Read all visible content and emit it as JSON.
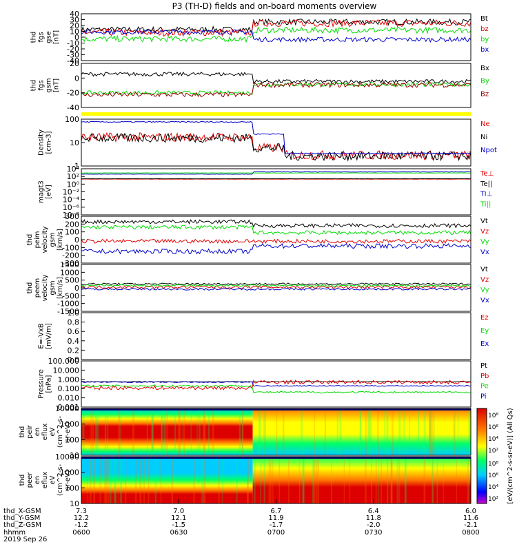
{
  "title": "P3 (TH-D) fields and on-board moments overview",
  "colors": {
    "black": "#000000",
    "red": "#e00000",
    "green": "#00dd00",
    "blue": "#0000cc",
    "darkred": "#990000",
    "yellow": "#ffff00"
  },
  "chart_data": [
    {
      "type": "line",
      "ylabel": [
        "thd",
        "fgs",
        "gse",
        "[nT]"
      ],
      "ylim": [
        -40,
        40
      ],
      "yticks": [
        "40",
        "30",
        "20",
        "10",
        "0",
        "-10",
        "-20",
        "-30",
        "-40"
      ],
      "series": [
        {
          "name": "Bt",
          "color": "black",
          "segments": [
            [
              0,
              0.44,
              13
            ],
            [
              0.44,
              1,
              26
            ]
          ],
          "noise": 5
        },
        {
          "name": "bz",
          "color": "red",
          "segments": [
            [
              0,
              0.44,
              8
            ],
            [
              0.44,
              1,
              24
            ]
          ],
          "noise": 6
        },
        {
          "name": "by",
          "color": "green",
          "segments": [
            [
              0,
              0.44,
              -3
            ],
            [
              0.44,
              1,
              12
            ]
          ],
          "noise": 5
        },
        {
          "name": "bx",
          "color": "blue",
          "segments": [
            [
              0,
              0.44,
              9
            ],
            [
              0.44,
              1,
              -4
            ]
          ],
          "noise": 4
        }
      ]
    },
    {
      "type": "line",
      "ylabel": [
        "thd",
        "fgs",
        "gsm",
        "[nT]"
      ],
      "ylim": [
        -50,
        40
      ],
      "yticks": [
        "20",
        "0",
        "-20",
        "-40"
      ],
      "series": [
        {
          "name": "Bx",
          "color": "black",
          "segments": [
            [
              0,
              0.44,
              18
            ],
            [
              0.44,
              1,
              3
            ]
          ],
          "noise": 4
        },
        {
          "name": "By",
          "color": "green",
          "segments": [
            [
              0,
              0.44,
              -20
            ],
            [
              0.44,
              1,
              -3
            ]
          ],
          "noise": 4
        },
        {
          "name": "Bz",
          "color": "darkred",
          "segments": [
            [
              0,
              0.44,
              -24
            ],
            [
              0.44,
              1,
              -4
            ]
          ],
          "noise": 5
        }
      ]
    },
    {
      "type": "line",
      "log": true,
      "ylabel": [
        "Density",
        "[cm-3]"
      ],
      "ylim": [
        0.5,
        200
      ],
      "yticks": [
        "100",
        "10",
        "1"
      ],
      "series": [
        {
          "name": "Ne",
          "color": "red",
          "segments": [
            [
              0,
              0.44,
              20
            ],
            [
              0.44,
              0.52,
              5
            ],
            [
              0.52,
              1,
              2
            ]
          ],
          "noise": 0.25
        },
        {
          "name": "Ni",
          "color": "black",
          "segments": [
            [
              0,
              0.44,
              18
            ],
            [
              0.44,
              0.52,
              5
            ],
            [
              0.52,
              1,
              1.8
            ]
          ],
          "noise": 0.25
        },
        {
          "name": "Npot",
          "color": "blue",
          "segments": [
            [
              0,
              0.44,
              140
            ],
            [
              0.44,
              0.52,
              30
            ],
            [
              0.52,
              1,
              2.5
            ]
          ],
          "noise": 0.03
        }
      ]
    },
    {
      "type": "line",
      "log": true,
      "ylabel": [
        "magt3",
        "[eV]"
      ],
      "ylim": [
        1e-08,
        10000.0
      ],
      "yticks": [
        "10⁴",
        "10²",
        "10⁰",
        "10⁻²",
        "10⁻⁴",
        "10⁻⁶",
        "10⁻⁸"
      ],
      "series": [
        {
          "name": "Te⊥",
          "color": "red",
          "segments": [
            [
              0,
              1,
              20
            ]
          ],
          "noise": 0.02
        },
        {
          "name": "Te||",
          "color": "black",
          "segments": [
            [
              0,
              1,
              25
            ]
          ],
          "noise": 0.02
        },
        {
          "name": "Ti⊥",
          "color": "blue",
          "segments": [
            [
              0,
              0.44,
              400
            ],
            [
              0.44,
              1,
              1500
            ]
          ],
          "noise": 0.05
        },
        {
          "name": "Ti||",
          "color": "green",
          "segments": [
            [
              0,
              1,
              800
            ]
          ],
          "noise": 0.03
        }
      ]
    },
    {
      "type": "line",
      "ylabel": [
        "thd",
        "peim",
        "velocity",
        "gsm",
        "[km/s]"
      ],
      "ylim": [
        -300,
        300
      ],
      "yticks": [
        "300",
        "200",
        "100",
        "0",
        "-100",
        "-200",
        "-300"
      ],
      "series": [
        {
          "name": "Vt",
          "color": "black",
          "segments": [
            [
              0,
              0.44,
              230
            ],
            [
              0.44,
              1,
              180
            ]
          ],
          "noise": 25
        },
        {
          "name": "Vz",
          "color": "red",
          "segments": [
            [
              0,
              1,
              -20
            ]
          ],
          "noise": 25
        },
        {
          "name": "Vy",
          "color": "green",
          "segments": [
            [
              0,
              0.44,
              160
            ],
            [
              0.44,
              1,
              90
            ]
          ],
          "noise": 25
        },
        {
          "name": "Vx",
          "color": "blue",
          "segments": [
            [
              0,
              0.44,
              -150
            ],
            [
              0.44,
              1,
              -80
            ]
          ],
          "noise": 30
        }
      ]
    },
    {
      "type": "line",
      "ylabel": [
        "thd",
        "peem",
        "velocity",
        "gsm",
        "[km/s]"
      ],
      "ylim": [
        -1500,
        1500
      ],
      "yticks": [
        "1500",
        "1000",
        "500",
        "0",
        "-500",
        "-1000",
        "-1500"
      ],
      "series": [
        {
          "name": "Vt",
          "color": "black",
          "segments": [
            [
              0,
              1,
              250
            ]
          ],
          "noise": 60
        },
        {
          "name": "Vz",
          "color": "red",
          "segments": [
            [
              0,
              1,
              50
            ]
          ],
          "noise": 90
        },
        {
          "name": "Vy",
          "color": "green",
          "segments": [
            [
              0,
              1,
              150
            ]
          ],
          "noise": 60
        },
        {
          "name": "Vx",
          "color": "blue",
          "segments": [
            [
              0,
              1,
              -80
            ]
          ],
          "noise": 60
        }
      ]
    },
    {
      "type": "line",
      "ylabel": [
        "E=-VxB",
        "[mV/m]"
      ],
      "ylim": [
        0,
        1
      ],
      "yticks": [
        "1.0",
        "0.8",
        "0.6",
        "0.4",
        "0.2",
        "0.0"
      ],
      "series": [
        {
          "name": "Ez",
          "color": "red",
          "segments": []
        },
        {
          "name": "Ey",
          "color": "green",
          "segments": []
        },
        {
          "name": "Ex",
          "color": "blue",
          "segments": []
        }
      ]
    },
    {
      "type": "line",
      "log": true,
      "ylabel": [
        "Pressure",
        "[nPa]"
      ],
      "ylim": [
        0.001,
        100
      ],
      "yticks": [
        "100.000",
        "10.000",
        "1.000",
        "0.100",
        "0.010",
        "0.001"
      ],
      "series": [
        {
          "name": "Pt",
          "color": "black",
          "segments": [
            [
              0,
              1,
              0.55
            ]
          ],
          "noise": 0.03
        },
        {
          "name": "Pb",
          "color": "red",
          "segments": [
            [
              0,
              0.44,
              0.12
            ],
            [
              0.44,
              1,
              0.5
            ]
          ],
          "noise": 0.2
        },
        {
          "name": "Pe",
          "color": "green",
          "segments": [
            [
              0,
              0.44,
              0.2
            ],
            [
              0.44,
              1,
              0.04
            ]
          ],
          "noise": 0.1
        },
        {
          "name": "Pi",
          "color": "blue",
          "segments": [
            [
              0,
              0.44,
              0.5
            ],
            [
              0.44,
              1,
              0.2
            ]
          ],
          "noise": 0.05
        }
      ]
    },
    {
      "type": "heatmap",
      "ylabel": [
        "thd",
        "peir",
        "en",
        "eflux",
        "eV",
        "(cm^2-s-",
        "sr-eV)"
      ],
      "yticks": [
        "10000",
        "1000",
        "100",
        "10"
      ],
      "colorbar_ticks": [
        "10⁸",
        "10⁶",
        "10⁴",
        "10²"
      ]
    },
    {
      "type": "heatmap",
      "ylabel": [
        "thd",
        "peer",
        "en",
        "eflux",
        "eV",
        "(cm^2-s-",
        "sr-eV)"
      ],
      "yticks": [
        "10000",
        "1000",
        "100",
        "10"
      ],
      "colorbar_ticks": [
        "10⁸",
        "10⁶",
        "10⁴",
        "10²"
      ]
    }
  ],
  "colorbar_label": "[eV/(cm^2-s-sr-eV)] (All Qs)",
  "x_axis": {
    "row_labels": [
      "thd_X-GSM",
      "thd_Y-GSM",
      "thd_Z-GSM",
      "hhmm",
      "2019 Sep 26"
    ],
    "ticks": [
      {
        "x": "7.3",
        "y": "12.2",
        "z": "-1.2",
        "t": "0600"
      },
      {
        "x": "7.0",
        "y": "12.1",
        "z": "-1.5",
        "t": "0630"
      },
      {
        "x": "6.7",
        "y": "11.9",
        "z": "-1.7",
        "t": "0700"
      },
      {
        "x": "6.4",
        "y": "11.8",
        "z": "-2.0",
        "t": "0730"
      },
      {
        "x": "6.0",
        "y": "11.6",
        "z": "-2.1",
        "t": "0800"
      }
    ]
  }
}
